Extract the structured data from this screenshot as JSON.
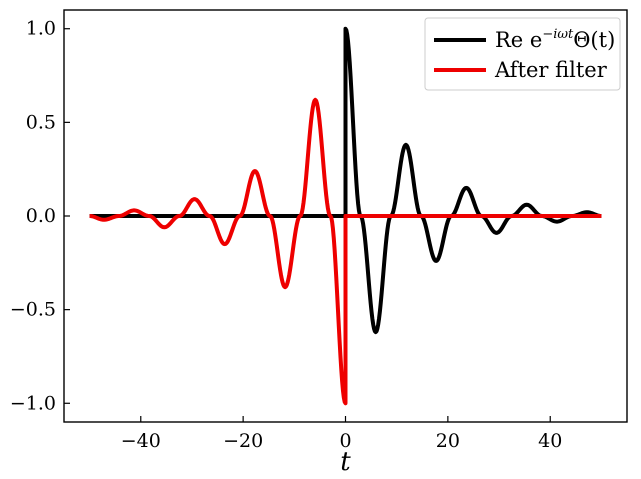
{
  "chart_data": {
    "type": "line",
    "xlabel": "t",
    "ylabel": "",
    "title": "",
    "xlim": [
      -55,
      55
    ],
    "ylim": [
      -1.1,
      1.1
    ],
    "xticks": [
      -40,
      -20,
      0,
      20,
      40
    ],
    "yticks": [
      -1.0,
      -0.5,
      0.0,
      0.5,
      1.0
    ],
    "xtick_labels": [
      "−40",
      "−20",
      "0",
      "20",
      "40"
    ],
    "ytick_labels": [
      "−1.0",
      "−0.5",
      "0.0",
      "0.5",
      "1.0"
    ],
    "grid": false,
    "legend_position": "top-right",
    "series": [
      {
        "name": "Re e^{−iωt}Θ(t)",
        "color": "#000000",
        "x": [
          -50,
          0,
          0,
          2.95,
          5.9,
          8.85,
          11.8,
          14.75,
          17.7,
          20.65,
          23.6,
          26.55,
          29.5,
          32.45,
          35.4,
          38.35,
          41.3,
          44.25,
          47.2,
          50
        ],
        "y": [
          0.0,
          0.0,
          1.0,
          0.0,
          -0.62,
          0.0,
          0.38,
          0.0,
          -0.24,
          0.0,
          0.15,
          0.0,
          -0.09,
          0.0,
          0.06,
          0.0,
          -0.03,
          0.0,
          0.02,
          0.0
        ]
      },
      {
        "name": "After filter",
        "color": "#ee0000",
        "x": [
          -50,
          -47.2,
          -44.25,
          -41.3,
          -38.35,
          -35.4,
          -32.45,
          -29.5,
          -26.55,
          -23.6,
          -20.65,
          -17.7,
          -14.75,
          -11.8,
          -8.85,
          -5.9,
          -2.95,
          0,
          0,
          50
        ],
        "y": [
          0.0,
          -0.02,
          0.0,
          0.03,
          0.0,
          -0.06,
          0.0,
          0.09,
          0.0,
          -0.15,
          0.0,
          0.24,
          0.0,
          -0.38,
          0.0,
          0.62,
          0.0,
          -1.0,
          0.0,
          0.0
        ]
      }
    ]
  },
  "legend": {
    "entries": [
      {
        "base": "Re e",
        "sup": "−iωt",
        "tail": "Θ(t)"
      },
      {
        "base": "After filter",
        "sup": "",
        "tail": ""
      }
    ]
  }
}
